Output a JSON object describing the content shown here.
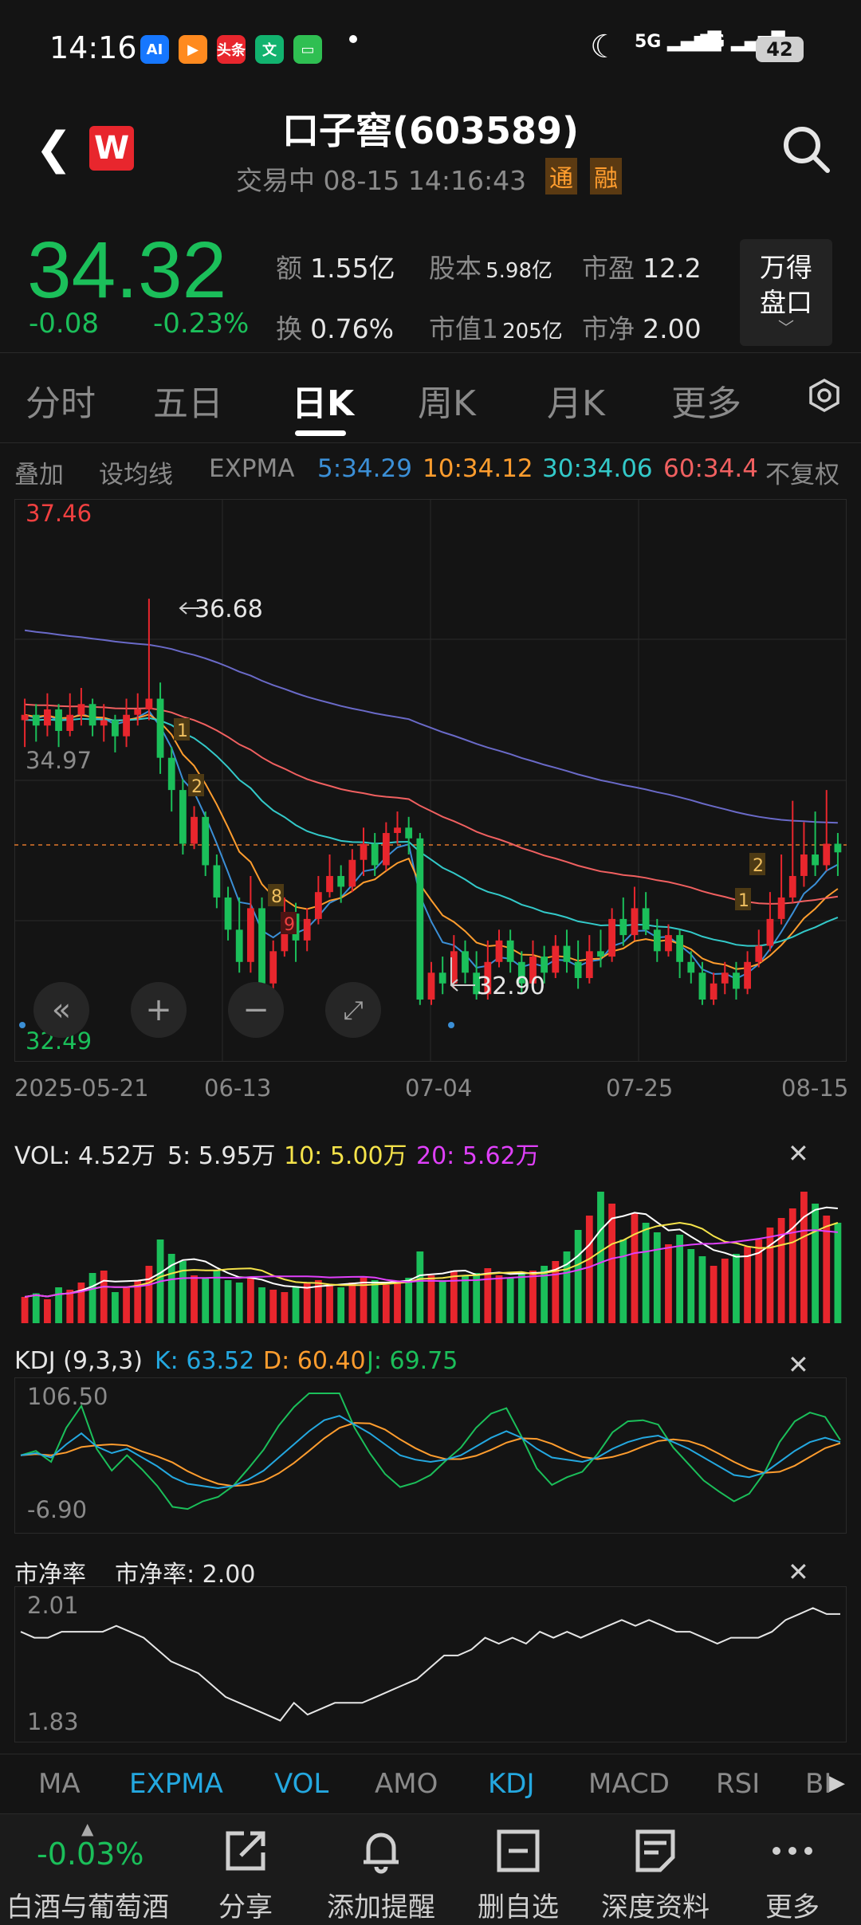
{
  "status_bar": {
    "time": "14:16",
    "battery": "42",
    "network": "5G"
  },
  "apps": [
    {
      "label": "AI",
      "color": "#1677ff"
    },
    {
      "label": "▶",
      "color": "#ff8a1f"
    },
    {
      "label": "头条",
      "color": "#e8262d"
    },
    {
      "label": "文",
      "color": "#12b36f"
    },
    {
      "label": "▭",
      "color": "#2fbf52"
    }
  ],
  "header": {
    "title": "口子窖(603589)",
    "status": "交易中 08-15 14:16:43",
    "tag1": "通",
    "tag2": "融"
  },
  "quote": {
    "price": "34.32",
    "change": "-0.08",
    "change_pct": "-0.23%",
    "stats": [
      {
        "label": "额",
        "value": "1.55亿"
      },
      {
        "label": "股本",
        "value": "5.98亿"
      },
      {
        "label": "市盈",
        "value": "12.2"
      },
      {
        "label": "换",
        "value": "0.76%"
      },
      {
        "label": "市值1",
        "value": "205亿"
      },
      {
        "label": "市净",
        "value": "2.00"
      }
    ],
    "wande_line1": "万得",
    "wande_line2": "盘口"
  },
  "tabs": [
    "分时",
    "五日",
    "日K",
    "周K",
    "月K",
    "更多"
  ],
  "indicator_row": {
    "overlay": "叠加",
    "set_ma": "设均线",
    "expma": "EXPMA",
    "e5": "5:34.29",
    "e10": "10:34.12",
    "e30": "30:34.06",
    "e60": "60:34.4",
    "adjust": "不复权"
  },
  "kline": {
    "high_label": "37.46",
    "mid_label": "34.97",
    "low_label": "32.49",
    "peak_annot": "36.68",
    "trough_annot": "32.90",
    "dates": [
      "2025-05-21",
      "06-13",
      "07-04",
      "07-25",
      "08-15"
    ],
    "signals": [
      "1",
      "2",
      "8",
      "9",
      "1",
      "2"
    ]
  },
  "vol": {
    "title": "VOL: 4.52万",
    "v5": "5: 5.95万",
    "v10": "10: 5.00万",
    "v20": "20: 5.62万"
  },
  "kdj": {
    "title": "KDJ (9,3,3)",
    "k": "K: 63.52",
    "d": "D: 60.40",
    "j": "J: 69.75",
    "top": "106.50",
    "bottom": "-6.90"
  },
  "pb": {
    "title": "市净率",
    "value": "市净率: 2.00",
    "top": "2.01",
    "bottom": "1.83"
  },
  "bottom_tabs": [
    "MA",
    "EXPMA",
    "VOL",
    "AMO",
    "KDJ",
    "MACD",
    "RSI",
    "BI"
  ],
  "bottom_nav": {
    "sector_change": "-0.03%",
    "sector": "白酒与葡萄酒",
    "share": "分享",
    "alert": "添加提醒",
    "remove": "删自选",
    "research": "深度资料",
    "more": "更多"
  },
  "colors": {
    "up": "#e8262d",
    "down": "#1bbf5a",
    "accent": "#24a8e0"
  },
  "chart_data": {
    "type": "candlestick",
    "title": "口子窖(603589) 日K",
    "ylim": [
      32.49,
      37.46
    ],
    "candles": [
      [
        35.55,
        35.6,
        35.75,
        35.3
      ],
      [
        35.6,
        35.5,
        35.7,
        35.35
      ],
      [
        35.5,
        35.65,
        35.8,
        35.4
      ],
      [
        35.65,
        35.45,
        35.7,
        35.3
      ],
      [
        35.45,
        35.6,
        35.8,
        35.4
      ],
      [
        35.6,
        35.7,
        35.85,
        35.5
      ],
      [
        35.7,
        35.5,
        35.75,
        35.4
      ],
      [
        35.5,
        35.55,
        35.7,
        35.35
      ],
      [
        35.55,
        35.4,
        35.6,
        35.25
      ],
      [
        35.4,
        35.6,
        35.75,
        35.3
      ],
      [
        35.6,
        35.65,
        35.8,
        35.5
      ],
      [
        35.65,
        35.75,
        36.68,
        35.55
      ],
      [
        35.75,
        35.2,
        35.9,
        35.05
      ],
      [
        35.2,
        34.9,
        35.3,
        34.7
      ],
      [
        34.9,
        34.4,
        35.0,
        34.3
      ],
      [
        34.4,
        34.65,
        34.75,
        34.35
      ],
      [
        34.65,
        34.2,
        34.7,
        34.1
      ],
      [
        34.2,
        33.9,
        34.3,
        33.8
      ],
      [
        33.9,
        33.6,
        34.0,
        33.5
      ],
      [
        33.6,
        33.3,
        33.9,
        33.2
      ],
      [
        33.3,
        33.8,
        34.1,
        33.2
      ],
      [
        33.8,
        33.1,
        33.9,
        33.0
      ],
      [
        33.1,
        33.4,
        33.5,
        32.9
      ],
      [
        33.4,
        33.75,
        33.9,
        33.35
      ],
      [
        33.75,
        33.5,
        33.85,
        33.3
      ],
      [
        33.5,
        33.7,
        33.8,
        33.4
      ],
      [
        33.7,
        33.95,
        34.1,
        33.65
      ],
      [
        33.95,
        34.1,
        34.3,
        33.9
      ],
      [
        34.1,
        34.0,
        34.2,
        33.85
      ],
      [
        34.0,
        34.25,
        34.35,
        33.95
      ],
      [
        34.25,
        34.4,
        34.55,
        34.1
      ],
      [
        34.4,
        34.2,
        34.5,
        34.1
      ],
      [
        34.2,
        34.5,
        34.6,
        34.15
      ],
      [
        34.5,
        34.55,
        34.7,
        34.4
      ],
      [
        34.55,
        34.45,
        34.65,
        34.3
      ],
      [
        34.45,
        32.95,
        34.5,
        32.9
      ],
      [
        32.95,
        33.2,
        33.3,
        32.9
      ],
      [
        33.2,
        33.1,
        33.35,
        33.0
      ],
      [
        33.1,
        33.4,
        33.55,
        33.05
      ],
      [
        33.4,
        33.2,
        33.5,
        33.1
      ],
      [
        33.2,
        33.0,
        33.4,
        32.95
      ],
      [
        33.0,
        33.3,
        33.5,
        32.95
      ],
      [
        33.3,
        33.5,
        33.6,
        33.25
      ],
      [
        33.5,
        33.3,
        33.6,
        33.2
      ],
      [
        33.3,
        33.1,
        33.4,
        33.0
      ],
      [
        33.1,
        33.35,
        33.5,
        33.05
      ],
      [
        33.35,
        33.2,
        33.45,
        33.1
      ],
      [
        33.2,
        33.45,
        33.55,
        33.15
      ],
      [
        33.45,
        33.3,
        33.6,
        33.2
      ],
      [
        33.3,
        33.15,
        33.5,
        33.05
      ],
      [
        33.15,
        33.4,
        33.55,
        33.1
      ],
      [
        33.4,
        33.35,
        33.6,
        33.25
      ],
      [
        33.35,
        33.7,
        33.8,
        33.3
      ],
      [
        33.7,
        33.55,
        33.9,
        33.45
      ],
      [
        33.55,
        33.8,
        34.0,
        33.5
      ],
      [
        33.8,
        33.6,
        33.95,
        33.55
      ],
      [
        33.6,
        33.4,
        33.7,
        33.3
      ],
      [
        33.4,
        33.55,
        33.65,
        33.35
      ],
      [
        33.55,
        33.3,
        33.6,
        33.15
      ],
      [
        33.3,
        33.2,
        33.4,
        33.1
      ],
      [
        33.2,
        32.95,
        33.3,
        32.9
      ],
      [
        32.95,
        33.1,
        33.2,
        32.9
      ],
      [
        33.1,
        33.2,
        33.3,
        33.0
      ],
      [
        33.2,
        33.05,
        33.3,
        32.95
      ],
      [
        33.05,
        33.3,
        33.4,
        33.0
      ],
      [
        33.3,
        33.45,
        33.6,
        33.25
      ],
      [
        33.45,
        33.7,
        33.95,
        33.4
      ],
      [
        33.7,
        33.9,
        34.3,
        33.65
      ],
      [
        33.9,
        34.1,
        34.8,
        33.85
      ],
      [
        34.1,
        34.3,
        34.6,
        34.0
      ],
      [
        34.3,
        34.2,
        34.7,
        34.1
      ],
      [
        34.2,
        34.4,
        34.9,
        34.15
      ],
      [
        34.4,
        34.32,
        34.5,
        34.1
      ]
    ],
    "ema_final": {
      "5": 34.29,
      "10": 34.12,
      "30": 34.06,
      "60": 34.4
    }
  }
}
